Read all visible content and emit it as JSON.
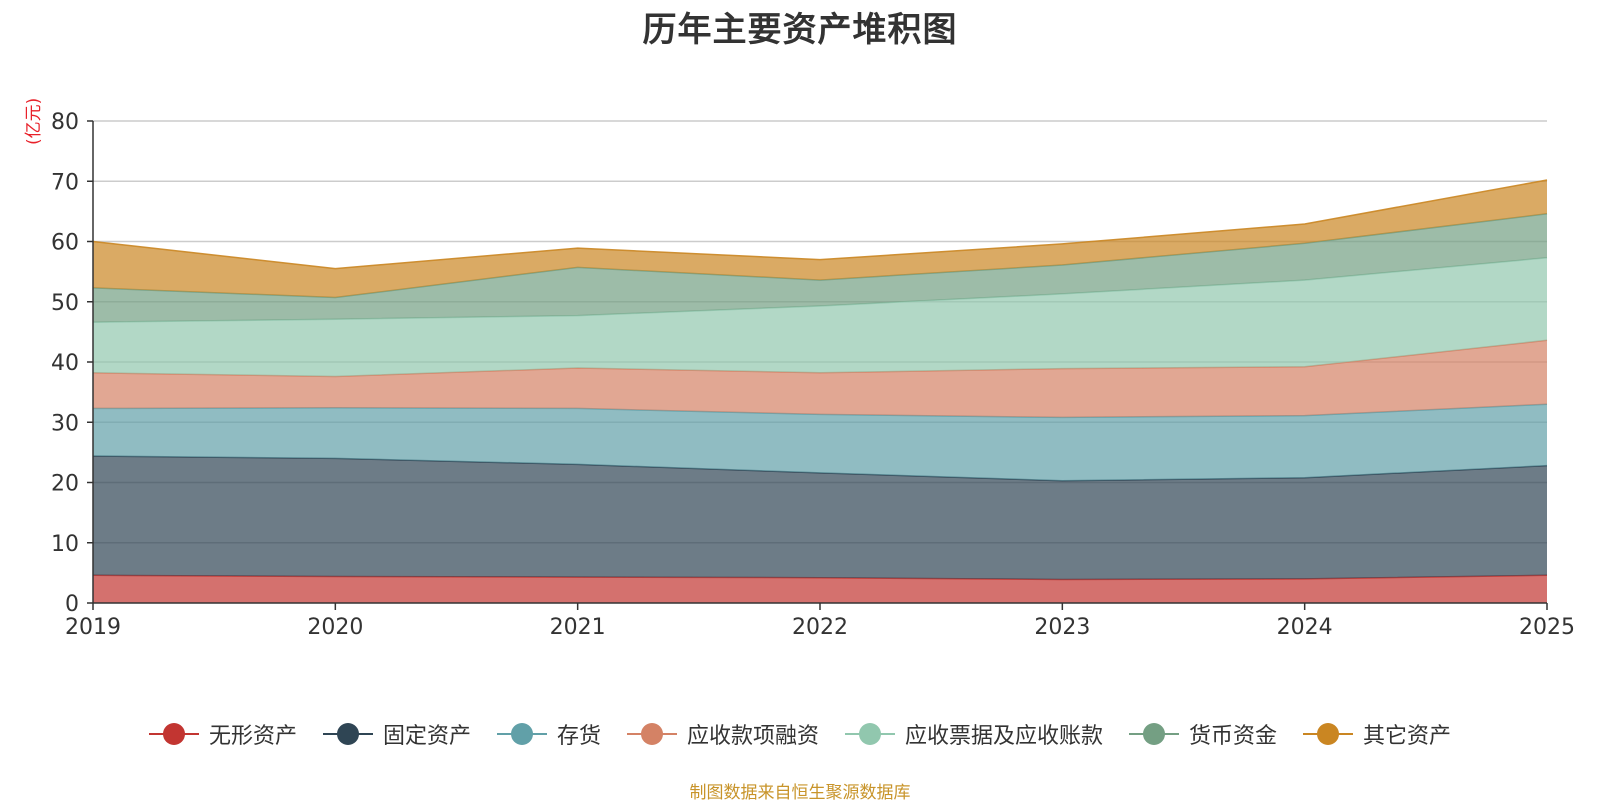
{
  "chart_data": {
    "type": "area",
    "stacked": true,
    "title": "历年主要资产堆积图",
    "ylabel": "(亿元)",
    "ylim": [
      0,
      80
    ],
    "yticks": [
      0,
      10,
      20,
      30,
      40,
      50,
      60,
      70,
      80
    ],
    "x": [
      "2019",
      "2020",
      "2021",
      "2022",
      "2023",
      "2024",
      "2025"
    ],
    "grid": true,
    "legend_position": "bottom",
    "series": [
      {
        "name": "无形资产",
        "color": "#c23531",
        "values": [
          4.6,
          4.4,
          4.3,
          4.2,
          3.9,
          4.0,
          4.6
        ]
      },
      {
        "name": "固定资产",
        "color": "#2f4554",
        "values": [
          19.8,
          19.6,
          18.7,
          17.4,
          16.4,
          16.8,
          18.2
        ]
      },
      {
        "name": "存货",
        "color": "#61a0a8",
        "values": [
          7.9,
          8.4,
          9.3,
          9.7,
          10.5,
          10.3,
          10.2
        ]
      },
      {
        "name": "应收款项融资",
        "color": "#d48265",
        "values": [
          5.9,
          5.2,
          6.7,
          6.9,
          8.1,
          8.1,
          10.6
        ]
      },
      {
        "name": "应收票据及应收账款",
        "color": "#91c7ae",
        "values": [
          8.4,
          9.5,
          8.7,
          11.1,
          12.4,
          14.4,
          13.7
        ]
      },
      {
        "name": "货币资金",
        "color": "#749f83",
        "values": [
          5.7,
          3.6,
          8.0,
          4.3,
          4.8,
          6.1,
          7.3
        ]
      },
      {
        "name": "其它资产",
        "color": "#ca8622",
        "values": [
          7.7,
          4.8,
          3.2,
          3.4,
          3.5,
          3.2,
          5.6
        ]
      }
    ]
  },
  "source_text": "制图数据来自恒生聚源数据库",
  "colors": {
    "unit_label": "#e8212a",
    "source_text": "#c8942a",
    "axis": "#333333",
    "grid": "#cccccc"
  }
}
